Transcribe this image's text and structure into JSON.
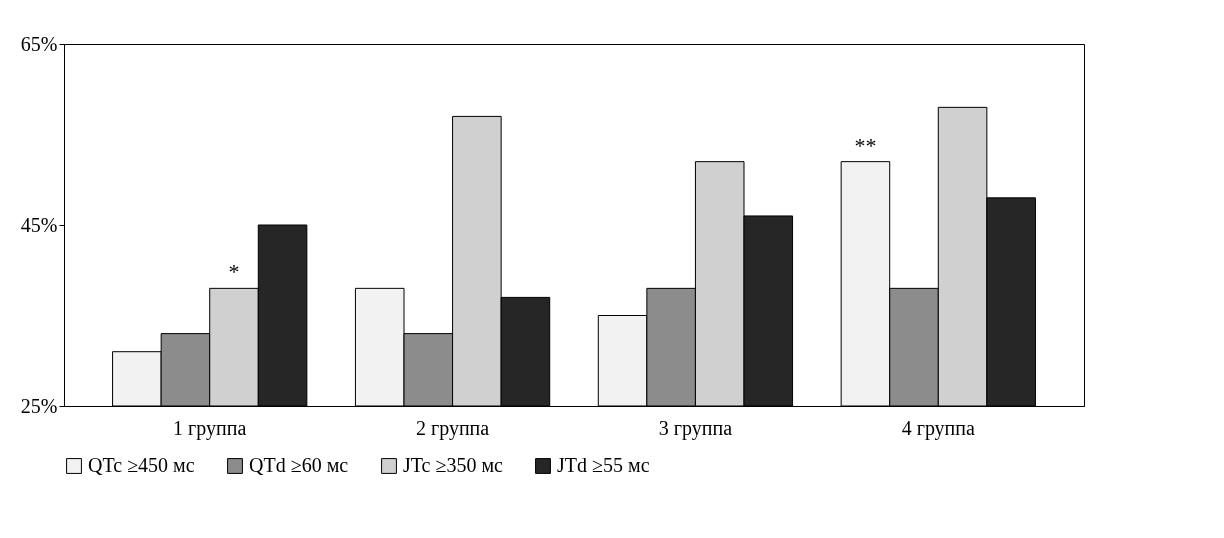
{
  "chart_data": {
    "type": "bar",
    "categories": [
      "1 группа",
      "2 группа",
      "3 группа",
      "4 группа"
    ],
    "series": [
      {
        "name": "QTc ≥450 мс",
        "color": "#f2f2f2",
        "values": [
          31,
          38,
          35,
          52
        ]
      },
      {
        "name": "QTd ≥60 мс",
        "color": "#8c8c8c",
        "values": [
          33,
          33,
          38,
          38
        ]
      },
      {
        "name": "JTc ≥350 мс",
        "color": "#d0d0d0",
        "values": [
          38,
          57,
          52,
          58
        ]
      },
      {
        "name": "JTd ≥55 мс",
        "color": "#262626",
        "values": [
          45,
          37,
          46,
          48
        ]
      }
    ],
    "ylim": [
      25,
      65
    ],
    "yticks": [
      {
        "value": 25,
        "label": "25%"
      },
      {
        "value": 45,
        "label": "45%"
      },
      {
        "value": 65,
        "label": "65%"
      }
    ],
    "annotations": [
      {
        "text": "*",
        "x": "1 группа",
        "y": 38
      },
      {
        "text": "**",
        "x": "4 группа",
        "y": 52
      }
    ],
    "grid": false,
    "legend": "bottom"
  }
}
